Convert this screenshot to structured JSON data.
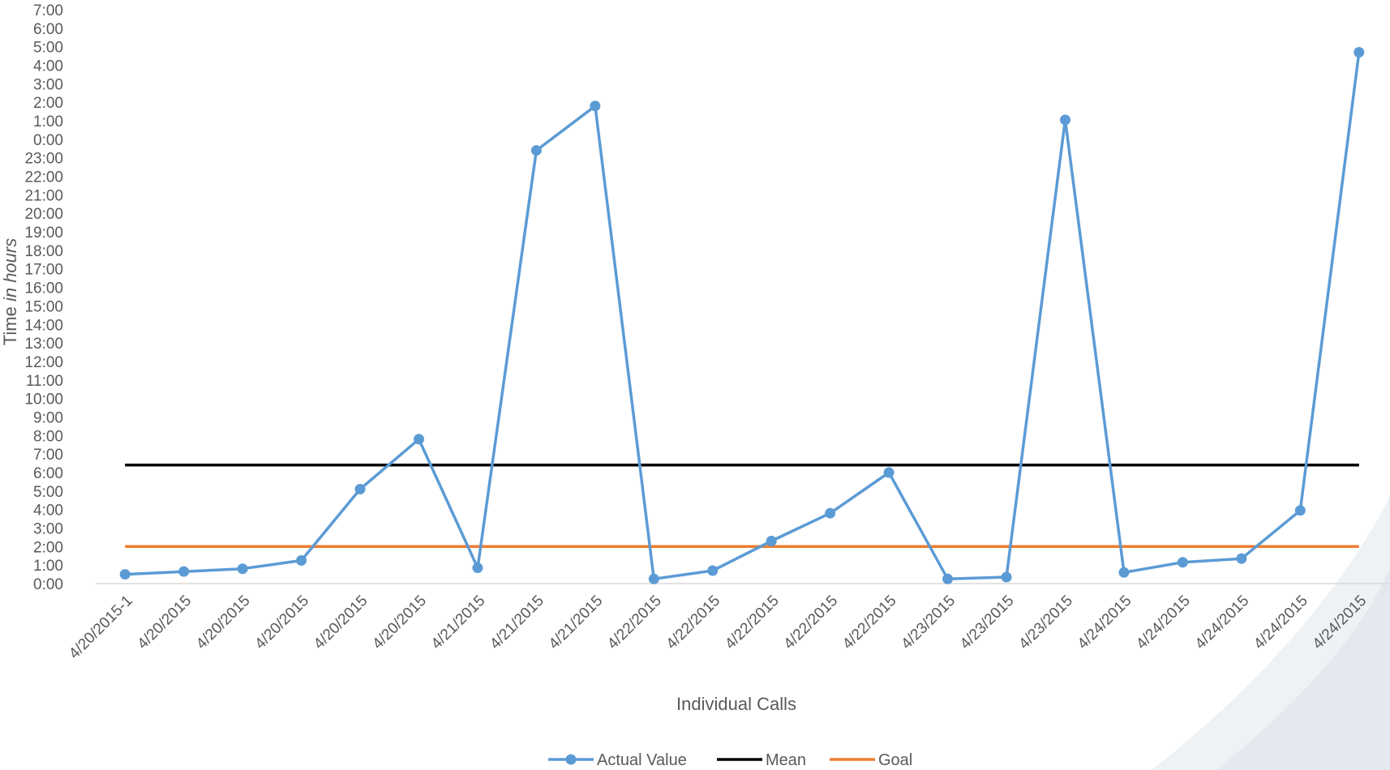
{
  "chart_data": {
    "type": "line",
    "title": "",
    "xlabel": "Individual Calls",
    "ylabel_prefix": "Time ",
    "ylabel_italic": "in hours",
    "y_tick_labels": [
      "0:00",
      "1:00",
      "2:00",
      "3:00",
      "4:00",
      "5:00",
      "6:00",
      "7:00",
      "8:00",
      "9:00",
      "10:00",
      "11:00",
      "12:00",
      "13:00",
      "14:00",
      "15:00",
      "16:00",
      "17:00",
      "18:00",
      "19:00",
      "20:00",
      "21:00",
      "22:00",
      "23:00",
      "0:00",
      "1:00",
      "2:00",
      "3:00",
      "4:00",
      "5:00",
      "6:00",
      "7:00"
    ],
    "ylim": [
      0,
      31
    ],
    "grid": false,
    "legend_position": "bottom",
    "categories": [
      "4/20/2015-1",
      "4/20/2015",
      "4/20/2015",
      "4/20/2015",
      "4/20/2015",
      "4/20/2015",
      "4/21/2015",
      "4/21/2015",
      "4/21/2015",
      "4/22/2015",
      "4/22/2015",
      "4/22/2015",
      "4/22/2015",
      "4/22/2015",
      "4/23/2015",
      "4/23/2015",
      "4/23/2015",
      "4/24/2015",
      "4/24/2015",
      "4/24/2015",
      "4/24/2015",
      "4/24/2015"
    ],
    "series": [
      {
        "name": "Actual Value",
        "color": "#5b9bd5",
        "marker": "circle",
        "values": [
          0.5,
          0.65,
          0.8,
          1.25,
          5.1,
          7.8,
          0.85,
          23.4,
          25.8,
          0.25,
          0.7,
          2.3,
          3.8,
          6.0,
          0.25,
          0.35,
          25.05,
          0.6,
          1.15,
          1.35,
          3.95,
          28.7
        ]
      },
      {
        "name": "Mean",
        "color": "#000000",
        "marker": "none",
        "values": [
          6.4,
          6.4,
          6.4,
          6.4,
          6.4,
          6.4,
          6.4,
          6.4,
          6.4,
          6.4,
          6.4,
          6.4,
          6.4,
          6.4,
          6.4,
          6.4,
          6.4,
          6.4,
          6.4,
          6.4,
          6.4,
          6.4
        ]
      },
      {
        "name": "Goal",
        "color": "#ed7d31",
        "marker": "none",
        "values": [
          2,
          2,
          2,
          2,
          2,
          2,
          2,
          2,
          2,
          2,
          2,
          2,
          2,
          2,
          2,
          2,
          2,
          2,
          2,
          2,
          2,
          2
        ]
      }
    ]
  },
  "colors": {
    "axis_line": "#d9d9d9",
    "text": "#595959",
    "decor_swoosh": "#e8edf1"
  }
}
